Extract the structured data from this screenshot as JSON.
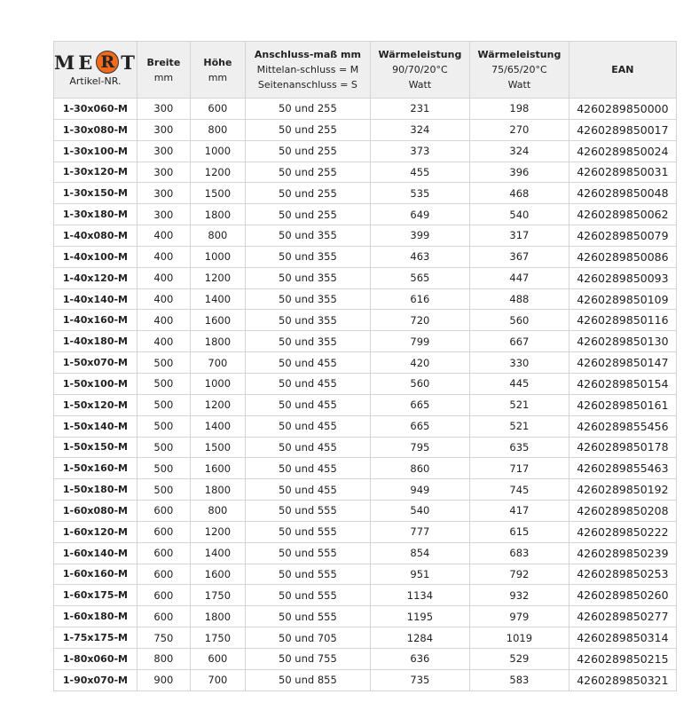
{
  "logo": {
    "text": "MERT",
    "parts": [
      "M",
      "E",
      "R",
      "T"
    ],
    "accent_color": "#f26a1b"
  },
  "header": {
    "artikel": "Artikel-NR.",
    "breite": "Breite",
    "breite_unit": "mm",
    "hoehe": "Höhe",
    "hoehe_unit": "mm",
    "anschluss": "Anschluss-maß mm",
    "anschluss_m": "Mittelan-schluss = M",
    "anschluss_s": "Seitenanschluss = S",
    "w1": "Wärmeleistung",
    "w1_temp": "90/70/20°C",
    "w1_unit": "Watt",
    "w2": "Wärmeleistung",
    "w2_temp": "75/65/20°C",
    "w2_unit": "Watt",
    "ean": "EAN"
  },
  "rows": [
    [
      "1-30x060-M",
      "300",
      "600",
      "50 und 255",
      "231",
      "198",
      "4260289850000"
    ],
    [
      "1-30x080-M",
      "300",
      "800",
      "50 und 255",
      "324",
      "270",
      "4260289850017"
    ],
    [
      "1-30x100-M",
      "300",
      "1000",
      "50 und 255",
      "373",
      "324",
      "4260289850024"
    ],
    [
      "1-30x120-M",
      "300",
      "1200",
      "50 und 255",
      "455",
      "396",
      "4260289850031"
    ],
    [
      "1-30x150-M",
      "300",
      "1500",
      "50 und 255",
      "535",
      "468",
      "4260289850048"
    ],
    [
      "1-30x180-M",
      "300",
      "1800",
      "50 und 255",
      "649",
      "540",
      "4260289850062"
    ],
    [
      "1-40x080-M",
      "400",
      "800",
      "50 und 355",
      "399",
      "317",
      "4260289850079"
    ],
    [
      "1-40x100-M",
      "400",
      "1000",
      "50 und 355",
      "463",
      "367",
      "4260289850086"
    ],
    [
      "1-40x120-M",
      "400",
      "1200",
      "50 und 355",
      "565",
      "447",
      "4260289850093"
    ],
    [
      "1-40x140-M",
      "400",
      "1400",
      "50 und 355",
      "616",
      "488",
      "4260289850109"
    ],
    [
      "1-40x160-M",
      "400",
      "1600",
      "50 und 355",
      "720",
      "560",
      "4260289850116"
    ],
    [
      "1-40x180-M",
      "400",
      "1800",
      "50 und 355",
      "799",
      "667",
      "4260289850130"
    ],
    [
      "1-50x070-M",
      "500",
      "700",
      "50 und 455",
      "420",
      "330",
      "4260289850147"
    ],
    [
      "1-50x100-M",
      "500",
      "1000",
      "50 und 455",
      "560",
      "445",
      "4260289850154"
    ],
    [
      "1-50x120-M",
      "500",
      "1200",
      "50 und 455",
      "665",
      "521",
      "4260289850161"
    ],
    [
      "1-50x140-M",
      "500",
      "1400",
      "50 und 455",
      "665",
      "521",
      "4260289855456"
    ],
    [
      "1-50x150-M",
      "500",
      "1500",
      "50 und 455",
      "795",
      "635",
      "4260289850178"
    ],
    [
      "1-50x160-M",
      "500",
      "1600",
      "50 und 455",
      "860",
      "717",
      "4260289855463"
    ],
    [
      "1-50x180-M",
      "500",
      "1800",
      "50 und 455",
      "949",
      "745",
      "4260289850192"
    ],
    [
      "1-60x080-M",
      "600",
      "800",
      "50 und 555",
      "540",
      "417",
      "4260289850208"
    ],
    [
      "1-60x120-M",
      "600",
      "1200",
      "50 und 555",
      "777",
      "615",
      "4260289850222"
    ],
    [
      "1-60x140-M",
      "600",
      "1400",
      "50 und 555",
      "854",
      "683",
      "4260289850239"
    ],
    [
      "1-60x160-M",
      "600",
      "1600",
      "50 und 555",
      "951",
      "792",
      "4260289850253"
    ],
    [
      "1-60x175-M",
      "600",
      "1750",
      "50 und 555",
      "1134",
      "932",
      "4260289850260"
    ],
    [
      "1-60x180-M",
      "600",
      "1800",
      "50 und 555",
      "1195",
      "979",
      "4260289850277"
    ],
    [
      "1-75x175-M",
      "750",
      "1750",
      "50 und 705",
      "1284",
      "1019",
      "4260289850314"
    ],
    [
      "1-80x060-M",
      "800",
      "600",
      "50 und 755",
      "636",
      "529",
      "4260289850215"
    ],
    [
      "1-90x070-M",
      "900",
      "700",
      "50 und 855",
      "735",
      "583",
      "4260289850321"
    ]
  ]
}
